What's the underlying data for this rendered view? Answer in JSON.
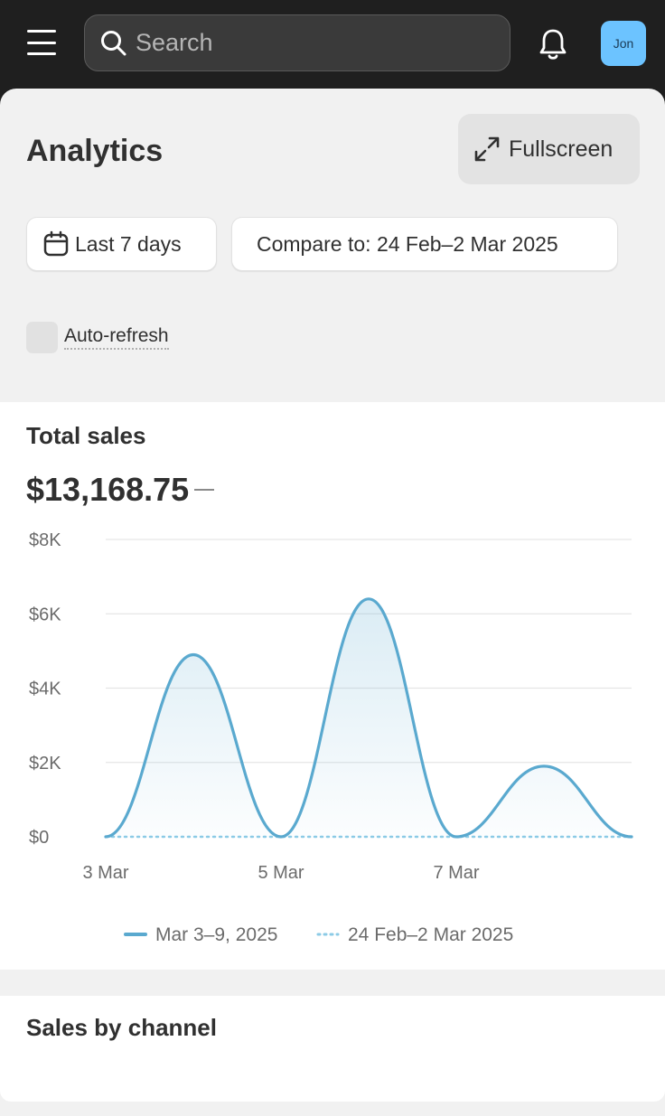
{
  "topbar": {
    "search_placeholder": "Search",
    "avatar_initials": "Jon",
    "icons": {
      "menu": "hamburger-menu-icon",
      "search": "magnifier-icon",
      "notifications": "bell-icon"
    }
  },
  "header": {
    "title": "Analytics",
    "fullscreen_label": "Fullscreen"
  },
  "filters": {
    "date_range_label": "Last 7 days",
    "compare_label": "Compare to: 24 Feb–2 Mar 2025",
    "auto_refresh_label": "Auto-refresh",
    "auto_refresh_checked": false
  },
  "total_sales": {
    "title": "Total sales",
    "value": "$13,168.75",
    "change_indicator": "—"
  },
  "chart_data": {
    "type": "area",
    "x": [
      "3 Mar",
      "4 Mar",
      "5 Mar",
      "6 Mar",
      "7 Mar",
      "8 Mar",
      "9 Mar"
    ],
    "x_tick_labels": [
      "3 Mar",
      "5 Mar",
      "7 Mar"
    ],
    "y_tick_labels": [
      "$0",
      "$2K",
      "$4K",
      "$6K",
      "$8K"
    ],
    "ylim": [
      0,
      8000
    ],
    "series": [
      {
        "name": "Mar 3–9, 2025",
        "style": "solid",
        "color": "#5aa9cf",
        "values": [
          0,
          4900,
          0,
          6400,
          0,
          1900,
          0
        ]
      },
      {
        "name": "24 Feb–2 Mar 2025",
        "style": "dotted",
        "color": "#8ccbe6",
        "values": [
          0,
          0,
          0,
          0,
          0,
          0,
          0
        ]
      }
    ],
    "grid": true,
    "legend_position": "bottom"
  },
  "sales_by_channel": {
    "title": "Sales by channel"
  },
  "colors": {
    "topbar_bg": "#1f1f1f",
    "sheet_bg": "#f1f1f1",
    "avatar_bg": "#6cc3ff",
    "line_primary": "#5aa9cf",
    "line_compare": "#8ccbe6"
  }
}
